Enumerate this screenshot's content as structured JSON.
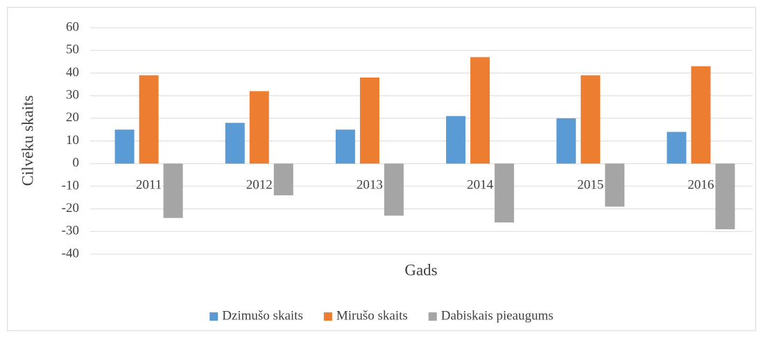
{
  "chart_data": {
    "type": "bar",
    "y_label": "Cilvēku skaits",
    "x_label": "Gads",
    "categories": [
      "2011",
      "2012",
      "2013",
      "2014",
      "2015",
      "2016"
    ],
    "series": [
      {
        "name": "Dzimušo skaits",
        "color": "#5b9bd5",
        "values": [
          15,
          18,
          15,
          21,
          20,
          14
        ]
      },
      {
        "name": "Mirušo skaits",
        "color": "#ed7d31",
        "values": [
          39,
          32,
          38,
          47,
          39,
          43
        ]
      },
      {
        "name": "Dabiskais pieaugums",
        "color": "#a5a5a5",
        "values": [
          -24,
          -14,
          -23,
          -26,
          -19,
          -29
        ]
      }
    ],
    "ylim": [
      -40,
      60
    ],
    "yticks": [
      -40,
      -30,
      -20,
      -10,
      0,
      10,
      20,
      30,
      40,
      50,
      60
    ],
    "grid": true,
    "legend": "bottom"
  }
}
